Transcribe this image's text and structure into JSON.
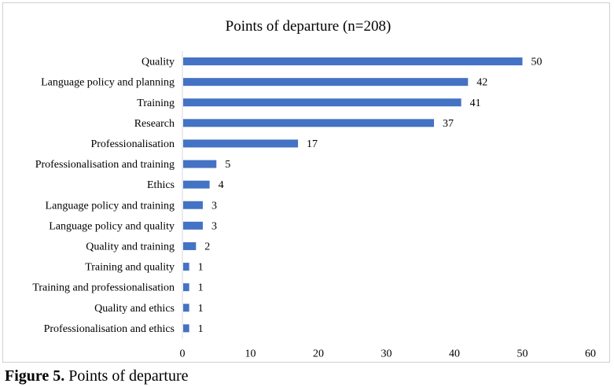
{
  "chart_data": {
    "type": "bar",
    "orientation": "horizontal",
    "title": "Points of departure (n=208)",
    "xlabel": "",
    "ylabel": "",
    "xlim": [
      0,
      60
    ],
    "x_ticks": [
      0,
      10,
      20,
      30,
      40,
      50,
      60
    ],
    "grid": false,
    "legend": "none",
    "bar_color": "#4472C4",
    "categories": [
      "Quality",
      "Language policy and planning",
      "Training",
      "Research",
      "Professionalisation",
      "Professionalisation and training",
      "Ethics",
      "Language policy and training",
      "Language policy and quality",
      "Quality and training",
      "Training and quality",
      "Training and professionalisation",
      "Quality and ethics",
      "Professionalisation and ethics"
    ],
    "values": [
      50,
      42,
      41,
      37,
      17,
      5,
      4,
      3,
      3,
      2,
      1,
      1,
      1,
      1
    ]
  },
  "caption": {
    "label": "Figure 5.",
    "text": " Points of departure"
  }
}
